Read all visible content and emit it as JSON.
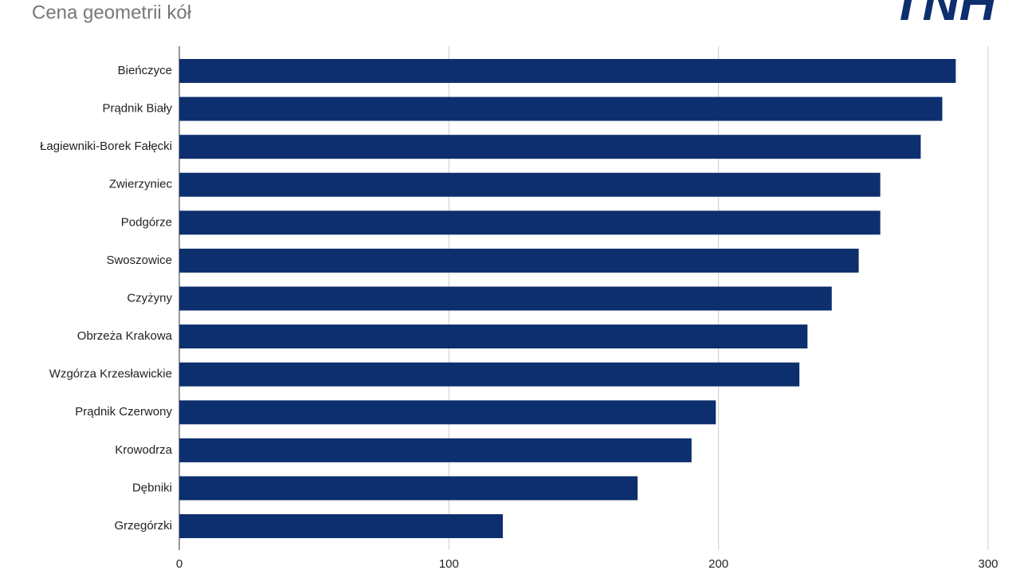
{
  "logo": "TNH",
  "chart_data": {
    "type": "barh",
    "title": "Cena geometrii kół",
    "categories": [
      "Bieńczyce",
      "Prądnik Biały",
      "Łagiewniki-Borek Fałęcki",
      "Zwierzyniec",
      "Podgórze",
      "Swoszowice",
      "Czyżyny",
      "Obrzeża Krakowa",
      "Wzgórza Krzesławickie",
      "Prądnik Czerwony",
      "Krowodrza",
      "Dębniki",
      "Grzegórzki"
    ],
    "values": [
      288,
      283,
      275,
      260,
      260,
      252,
      242,
      233,
      230,
      199,
      190,
      170,
      120
    ],
    "color": "#0d2f6e",
    "xlim": [
      0,
      300
    ],
    "xticks": [
      0,
      100,
      200,
      300
    ],
    "grid": true
  }
}
